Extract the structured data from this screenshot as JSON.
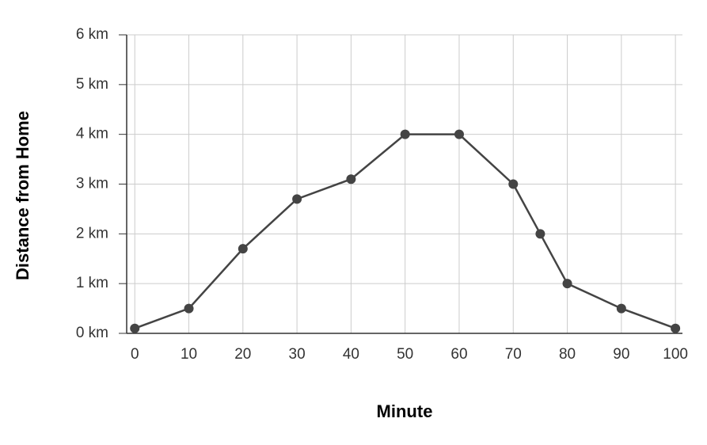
{
  "chart_data": {
    "type": "line",
    "xlabel": "Minute",
    "ylabel": "Distance from Home",
    "x": [
      0,
      10,
      20,
      30,
      40,
      50,
      60,
      70,
      75,
      80,
      90,
      100
    ],
    "series": [
      {
        "color": "#444444",
        "values": [
          0.1,
          0.5,
          1.7,
          2.7,
          3.1,
          4,
          4,
          3,
          2,
          1,
          0.5,
          0.1
        ]
      }
    ],
    "xlim": [
      -1.5,
      101.3
    ],
    "xticks": [
      0,
      10,
      20,
      30,
      40,
      50,
      60,
      70,
      80,
      90,
      100
    ],
    "ylim": [
      0,
      6
    ],
    "yticks": [
      {
        "value": 0,
        "label": "0 km"
      },
      {
        "value": 1,
        "label": "1 km"
      },
      {
        "value": 2,
        "label": "2 km"
      },
      {
        "value": 3,
        "label": "3 km"
      },
      {
        "value": 4,
        "label": "4 km"
      },
      {
        "value": 5,
        "label": "5 km"
      },
      {
        "value": 6,
        "label": "6 km"
      }
    ],
    "grid": true
  }
}
